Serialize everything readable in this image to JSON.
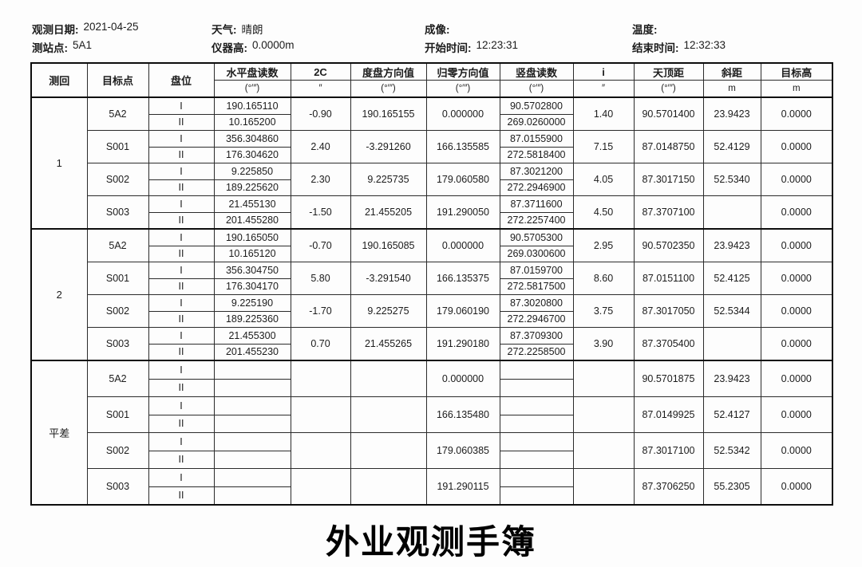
{
  "info": {
    "row1": [
      {
        "label": "观测日期:",
        "value": "2021-04-25"
      },
      {
        "label": "天气:",
        "value": "晴朗"
      },
      {
        "label": "成像:",
        "value": ""
      },
      {
        "label": "温度:",
        "value": ""
      }
    ],
    "row2": [
      {
        "label": "测站点:",
        "value": "5A1"
      },
      {
        "label": "仪器高:",
        "value": "0.0000m"
      },
      {
        "label": "开始时间:",
        "value": "12:23:31"
      },
      {
        "label": "结束时间:",
        "value": "12:32:33"
      }
    ]
  },
  "table": {
    "columns": [
      {
        "key": "round",
        "label": "测回",
        "unit": ""
      },
      {
        "key": "target",
        "label": "目标点",
        "unit": ""
      },
      {
        "key": "face",
        "label": "盘位",
        "unit": ""
      },
      {
        "key": "hz",
        "label": "水平盘读数",
        "unit": "(°′″)"
      },
      {
        "key": "c2",
        "label": "2C",
        "unit": "″"
      },
      {
        "key": "dir",
        "label": "度盘方向值",
        "unit": "(°′″)"
      },
      {
        "key": "zero",
        "label": "归零方向值",
        "unit": "(°′″)"
      },
      {
        "key": "vert",
        "label": "竖盘读数",
        "unit": "(°′″)"
      },
      {
        "key": "i",
        "label": "i",
        "unit": "″"
      },
      {
        "key": "zenith",
        "label": "天顶距",
        "unit": "(°′″)"
      },
      {
        "key": "slope",
        "label": "斜距",
        "unit": "m"
      },
      {
        "key": "target_h",
        "label": "目标高",
        "unit": "m"
      }
    ],
    "face_labels": [
      "I",
      "II"
    ],
    "groups": [
      {
        "round": "1",
        "targets": [
          {
            "name": "5A2",
            "hz": [
              "190.165110",
              "10.165200"
            ],
            "c2": "-0.90",
            "dir": "190.165155",
            "zero": "0.000000",
            "vert": [
              "90.5702800",
              "269.0260000"
            ],
            "i": "1.40",
            "zenith": "90.5701400",
            "slope": "23.9423",
            "target_h": "0.0000"
          },
          {
            "name": "S001",
            "hz": [
              "356.304860",
              "176.304620"
            ],
            "c2": "2.40",
            "dir": "-3.291260",
            "zero": "166.135585",
            "vert": [
              "87.0155900",
              "272.5818400"
            ],
            "i": "7.15",
            "zenith": "87.0148750",
            "slope": "52.4129",
            "target_h": "0.0000"
          },
          {
            "name": "S002",
            "hz": [
              "9.225850",
              "189.225620"
            ],
            "c2": "2.30",
            "dir": "9.225735",
            "zero": "179.060580",
            "vert": [
              "87.3021200",
              "272.2946900"
            ],
            "i": "4.05",
            "zenith": "87.3017150",
            "slope": "52.5340",
            "target_h": "0.0000"
          },
          {
            "name": "S003",
            "hz": [
              "21.455130",
              "201.455280"
            ],
            "c2": "-1.50",
            "dir": "21.455205",
            "zero": "191.290050",
            "vert": [
              "87.3711600",
              "272.2257400"
            ],
            "i": "4.50",
            "zenith": "87.3707100",
            "slope": "",
            "target_h": "0.0000"
          }
        ]
      },
      {
        "round": "2",
        "targets": [
          {
            "name": "5A2",
            "hz": [
              "190.165050",
              "10.165120"
            ],
            "c2": "-0.70",
            "dir": "190.165085",
            "zero": "0.000000",
            "vert": [
              "90.5705300",
              "269.0300600"
            ],
            "i": "2.95",
            "zenith": "90.5702350",
            "slope": "23.9423",
            "target_h": "0.0000"
          },
          {
            "name": "S001",
            "hz": [
              "356.304750",
              "176.304170"
            ],
            "c2": "5.80",
            "dir": "-3.291540",
            "zero": "166.135375",
            "vert": [
              "87.0159700",
              "272.5817500"
            ],
            "i": "8.60",
            "zenith": "87.0151100",
            "slope": "52.4125",
            "target_h": "0.0000"
          },
          {
            "name": "S002",
            "hz": [
              "9.225190",
              "189.225360"
            ],
            "c2": "-1.70",
            "dir": "9.225275",
            "zero": "179.060190",
            "vert": [
              "87.3020800",
              "272.2946700"
            ],
            "i": "3.75",
            "zenith": "87.3017050",
            "slope": "52.5344",
            "target_h": "0.0000"
          },
          {
            "name": "S003",
            "hz": [
              "21.455300",
              "201.455230"
            ],
            "c2": "0.70",
            "dir": "21.455265",
            "zero": "191.290180",
            "vert": [
              "87.3709300",
              "272.2258500"
            ],
            "i": "3.90",
            "zenith": "87.3705400",
            "slope": "",
            "target_h": "0.0000"
          }
        ]
      },
      {
        "round": "平差",
        "targets": [
          {
            "name": "5A2",
            "hz": [
              "",
              ""
            ],
            "c2": "",
            "dir": "",
            "zero": "0.000000",
            "vert": [
              "",
              ""
            ],
            "i": "",
            "zenith": "90.5701875",
            "slope": "23.9423",
            "target_h": "0.0000"
          },
          {
            "name": "S001",
            "hz": [
              "",
              ""
            ],
            "c2": "",
            "dir": "",
            "zero": "166.135480",
            "vert": [
              "",
              ""
            ],
            "i": "",
            "zenith": "87.0149925",
            "slope": "52.4127",
            "target_h": "0.0000"
          },
          {
            "name": "S002",
            "hz": [
              "",
              ""
            ],
            "c2": "",
            "dir": "",
            "zero": "179.060385",
            "vert": [
              "",
              ""
            ],
            "i": "",
            "zenith": "87.3017100",
            "slope": "52.5342",
            "target_h": "0.0000"
          },
          {
            "name": "S003",
            "hz": [
              "",
              ""
            ],
            "c2": "",
            "dir": "",
            "zero": "191.290115",
            "vert": [
              "",
              ""
            ],
            "i": "",
            "zenith": "87.3706250",
            "slope": "55.2305",
            "target_h": "0.0000"
          }
        ]
      }
    ]
  },
  "footer": {
    "title": "外业观测手簿"
  }
}
